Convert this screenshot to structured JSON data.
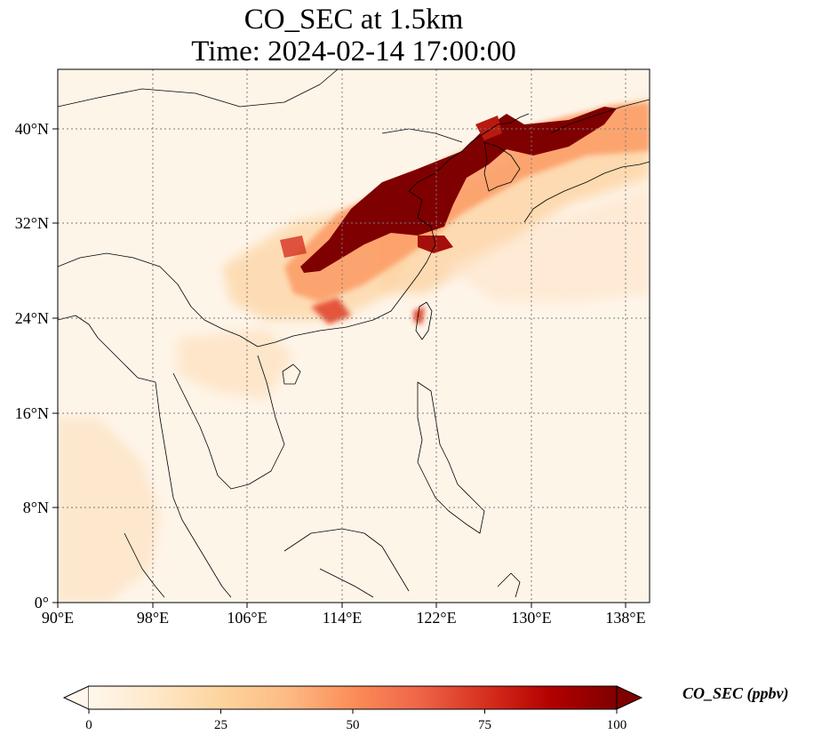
{
  "title": {
    "line1": "CO_SEC at 1.5km",
    "line2": "Time: 2024-02-14 17:00:00"
  },
  "map": {
    "projection": "PlateCarree",
    "lon_range": [
      90,
      140
    ],
    "lat_range": [
      0,
      45
    ],
    "gridlines": "dotted",
    "coastlines": true,
    "borders": true,
    "x_ticks": [
      {
        "value": 90,
        "label": "90°E"
      },
      {
        "value": 98,
        "label": "98°E"
      },
      {
        "value": 106,
        "label": "106°E"
      },
      {
        "value": 114,
        "label": "114°E"
      },
      {
        "value": 122,
        "label": "122°E"
      },
      {
        "value": 130,
        "label": "130°E"
      },
      {
        "value": 138,
        "label": "138°E"
      }
    ],
    "y_ticks": [
      {
        "value": 0,
        "label": "0°"
      },
      {
        "value": 8,
        "label": "8°N"
      },
      {
        "value": 16,
        "label": "16°N"
      },
      {
        "value": 24,
        "label": "24°N"
      },
      {
        "value": 32,
        "label": "32°N"
      },
      {
        "value": 40,
        "label": "40°N"
      }
    ]
  },
  "colorbar": {
    "cmap": "OrRd",
    "range": [
      0,
      100
    ],
    "extend": "both",
    "ticks": [
      "0",
      "25",
      "50",
      "75",
      "100"
    ],
    "label": "CO_SEC (ppbv)",
    "colors": [
      "#fff7ec",
      "#fee8c8",
      "#fdd49e",
      "#fdbb84",
      "#fc8d59",
      "#ef6548",
      "#d7301f",
      "#b30000",
      "#7f0000"
    ]
  }
}
